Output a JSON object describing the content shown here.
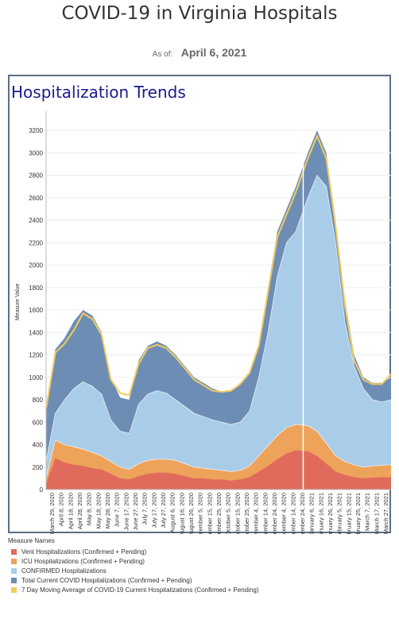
{
  "header": {
    "title": "COVID-19 in Virginia Hospitals",
    "asof_label": "As of:",
    "asof_date": "April 6, 2021"
  },
  "panel": {
    "title": "Hospitalization Trends"
  },
  "legend": {
    "title": "Measure Names",
    "items": [
      {
        "label": "Vent Hospitalizations (Confirmed + Pending)",
        "color": "#e06b5c"
      },
      {
        "label": "ICU Hospitalizations (Confirmed + Pending)",
        "color": "#eda35a"
      },
      {
        "label": "CONFIRMED Hospitalizations",
        "color": "#a9cce9"
      },
      {
        "label": "Total Current COVID Hospitalizations (Confirmed + Pending)",
        "color": "#6e8db5"
      },
      {
        "label": "7 Day Moving Average of COVID-19 Current Hospitalizations (Confirmed + Pending)",
        "color": "#f0cd5e"
      }
    ]
  },
  "chart_data": {
    "type": "area",
    "ylabel": "Measure Value",
    "xlabel": "",
    "ylim": [
      0,
      3300
    ],
    "yticks": [
      0,
      200,
      400,
      600,
      800,
      1000,
      1200,
      1400,
      1600,
      1800,
      2000,
      2200,
      2400,
      2600,
      2800,
      3000,
      3200
    ],
    "x_start": "2020-03-29",
    "x_end": "2021-04-06",
    "xticks": [
      "March 29, 2020",
      "April 8, 2020",
      "April 18, 2020",
      "April 28, 2020",
      "May 8, 2020",
      "May 18, 2020",
      "May 28, 2020",
      "June 7, 2020",
      "June 17, 2020",
      "June 27, 2020",
      "July 7, 2020",
      "July 17, 2020",
      "July 27, 2020",
      "August 6, 2020",
      "August 16, 2020",
      "August 26, 2020",
      "September 5, 2020",
      "September 15, 2020",
      "September 25, 2020",
      "October 5, 2020",
      "October 15, 2020",
      "October 25, 2020",
      "November 4, 2020",
      "November 14, 2020",
      "November 24, 2020",
      "December 4, 2020",
      "December 14, 2020",
      "December 24, 2020",
      "January 6, 2021",
      "January 16, 2021",
      "January 26, 2021",
      "February 5, 2021",
      "February 15, 2021",
      "February 25, 2021",
      "March 7, 2021",
      "March 17, 2021",
      "March 27, 2021"
    ],
    "dates": [
      "2020-03-29",
      "2020-04-08",
      "2020-04-18",
      "2020-04-28",
      "2020-05-08",
      "2020-05-18",
      "2020-05-28",
      "2020-06-07",
      "2020-06-17",
      "2020-06-27",
      "2020-07-07",
      "2020-07-17",
      "2020-07-27",
      "2020-08-06",
      "2020-08-16",
      "2020-08-26",
      "2020-09-05",
      "2020-09-15",
      "2020-09-25",
      "2020-10-05",
      "2020-10-15",
      "2020-10-25",
      "2020-11-04",
      "2020-11-14",
      "2020-11-24",
      "2020-12-04",
      "2020-12-14",
      "2020-12-24",
      "2021-01-06",
      "2021-01-16",
      "2021-01-26",
      "2021-02-05",
      "2021-02-15",
      "2021-02-25",
      "2021-03-07",
      "2021-03-17",
      "2021-03-27",
      "2021-04-06"
    ],
    "series": [
      {
        "name": "Vent Hospitalizations (Confirmed + Pending)",
        "color": "#e06b5c",
        "values": [
          50,
          280,
          240,
          220,
          210,
          190,
          180,
          140,
          100,
          90,
          120,
          140,
          150,
          150,
          140,
          120,
          100,
          100,
          90,
          90,
          80,
          90,
          110,
          160,
          210,
          270,
          320,
          350,
          340,
          300,
          230,
          160,
          130,
          110,
          100,
          105,
          110,
          110
        ]
      },
      {
        "name": "ICU Hospitalizations (Confirmed + Pending)",
        "color": "#eda35a",
        "values": [
          100,
          440,
          400,
          380,
          360,
          330,
          300,
          250,
          200,
          180,
          230,
          260,
          270,
          270,
          260,
          230,
          200,
          190,
          180,
          170,
          160,
          170,
          210,
          300,
          390,
          480,
          550,
          580,
          570,
          520,
          410,
          300,
          250,
          220,
          200,
          210,
          215,
          220
        ]
      },
      {
        "name": "CONFIRMED Hospitalizations",
        "color": "#a9cce9",
        "values": [
          250,
          680,
          800,
          900,
          960,
          920,
          850,
          620,
          520,
          500,
          760,
          850,
          880,
          860,
          800,
          740,
          680,
          650,
          620,
          600,
          580,
          600,
          700,
          1000,
          1400,
          1900,
          2200,
          2300,
          2600,
          2800,
          2700,
          2200,
          1500,
          1100,
          900,
          800,
          780,
          800
        ]
      },
      {
        "name": "Total Current COVID Hospitalizations (Confirmed + Pending)",
        "color": "#6e8db5",
        "values": [
          750,
          1250,
          1350,
          1500,
          1600,
          1550,
          1400,
          1000,
          820,
          800,
          1150,
          1280,
          1320,
          1280,
          1200,
          1100,
          1000,
          950,
          900,
          870,
          880,
          950,
          1050,
          1300,
          1800,
          2300,
          2500,
          2700,
          3000,
          3200,
          3000,
          2400,
          1700,
          1200,
          1000,
          950,
          950,
          1000
        ]
      },
      {
        "name": "7 Day Moving Average of COVID-19 Current Hospitalizations (Confirmed + Pending)",
        "color": "#f0cd5e",
        "values": [
          720,
          1220,
          1300,
          1420,
          1570,
          1520,
          1380,
          980,
          860,
          840,
          1120,
          1260,
          1290,
          1260,
          1180,
          1080,
          980,
          930,
          880,
          870,
          880,
          940,
          1040,
          1280,
          1760,
          2250,
          2450,
          2650,
          2950,
          3150,
          2950,
          2350,
          1650,
          1150,
          980,
          940,
          940,
          1030
        ]
      }
    ]
  }
}
